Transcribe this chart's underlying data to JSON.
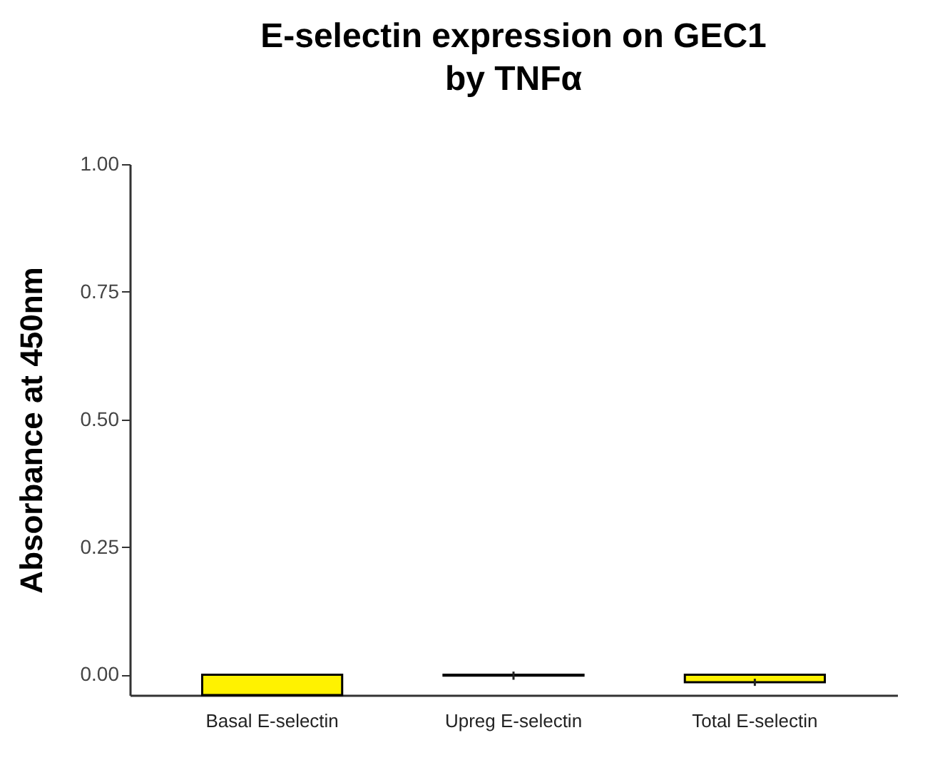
{
  "chart_data": {
    "type": "bar",
    "title": "E-selectin expression on GEC1\nby TNFα",
    "ylabel": "Absorbance at 450nm",
    "categories": [
      "Basal E-selectin",
      "Upreg E-selectin",
      "Total E-selectin"
    ],
    "values": [
      -0.04,
      -0.002,
      -0.015
    ],
    "errors": [
      null,
      0.008,
      0.007
    ],
    "color": "#fff200",
    "ylim": [
      -0.04,
      1
    ],
    "yticks": [
      {
        "value": 0,
        "label": "0.00"
      },
      {
        "value": 0.25,
        "label": "0.25"
      },
      {
        "value": 0.5,
        "label": "0.50"
      },
      {
        "value": 0.75,
        "label": "0.75"
      },
      {
        "value": 1,
        "label": "1.00"
      }
    ],
    "grid": false
  }
}
